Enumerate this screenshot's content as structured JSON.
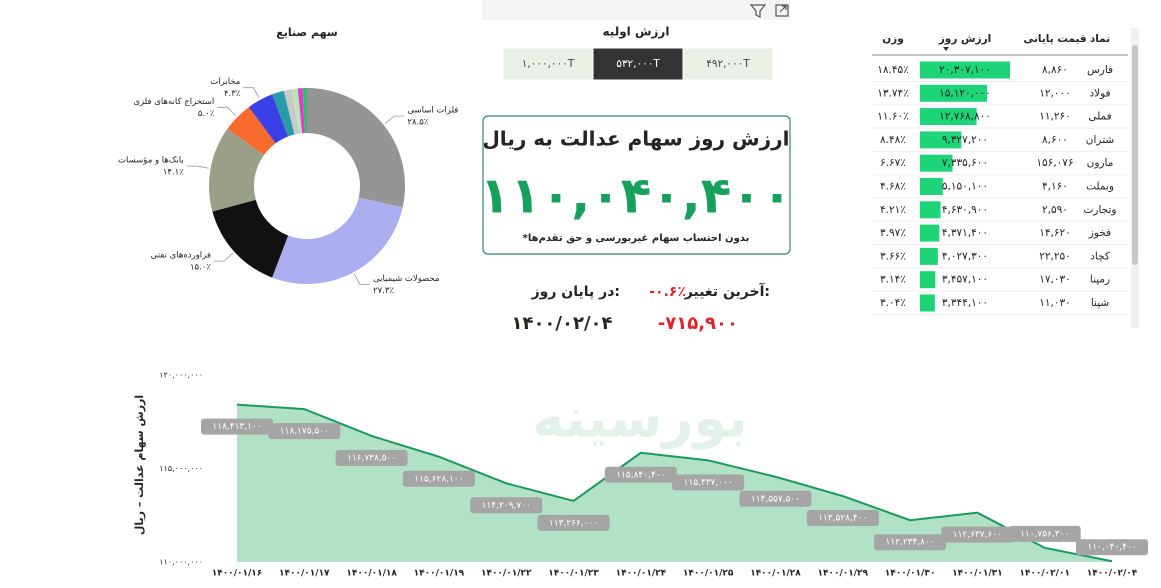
{
  "filter": {
    "title": "ارزش اولیه",
    "options": [
      "۱,۰۰۰,۰۰۰T",
      "۵۳۲,۰۰۰T",
      "۴۹۲,۰۰۰T"
    ],
    "selected_option": 1
  },
  "kpi": {
    "title": "ارزش روز سهام عدالت به ریال",
    "value": "۱۱۰,۰۴۰,۴۰۰",
    "note": "*بدون احتساب سهام غیربورسی و حق تقدم‌ها"
  },
  "change": {
    "label": "آخرین تغییر:",
    "percent": "-۰.۶٪",
    "end_label": "در پایان روز:",
    "amount": "-۷۱۵,۹۰۰",
    "date": "۱۴۰۰/۰۲/۰۴"
  },
  "watermark": "بورسینه",
  "table": {
    "columns": [
      "نماد",
      "قیمت پایانی",
      "ارزش روز",
      "وزن"
    ],
    "rows": [
      [
        "فارس",
        "۸,۸۶۰",
        "۲۰,۳۰۷,۱۰۰",
        "۱۸.۴۵٪"
      ],
      [
        "فولاد",
        "۱۲,۰۰۰",
        "۱۵,۱۲۰,۰۰۰",
        "۱۳.۷۴٪"
      ],
      [
        "فملی",
        "۱۱,۲۶۰",
        "۱۲,۷۶۸,۸۰۰",
        "۱۱.۶۰٪"
      ],
      [
        "شتران",
        "۸,۶۰۰",
        "۹,۳۲۷,۲۰۰",
        "۸.۴۸٪"
      ],
      [
        "مارون",
        "۱۵۶,۰۷۶",
        "۷,۳۳۵,۶۰۰",
        "۶.۶۷٪"
      ],
      [
        "وبملت",
        "۴,۱۶۰",
        "۵,۱۵۰,۱۰۰",
        "۴.۶۸٪"
      ],
      [
        "وتجارت",
        "۲,۵۹۰",
        "۴,۶۳۰,۹۰۰",
        "۴.۲۱٪"
      ],
      [
        "فخوز",
        "۱۴,۶۲۰",
        "۴,۳۷۱,۴۰۰",
        "۳.۹۷٪"
      ],
      [
        "کچاد",
        "۲۲,۲۵۰",
        "۴,۰۲۷,۳۰۰",
        "۳.۶۶٪"
      ],
      [
        "رمپنا",
        "۱۷,۰۳۰",
        "۳,۴۵۷,۱۰۰",
        "۳.۱۴٪"
      ],
      [
        "شپنا",
        "۱۱,۰۳۰",
        "۳,۳۴۴,۱۰۰",
        "۳.۰۴٪"
      ]
    ]
  },
  "chart_data": [
    {
      "type": "pie",
      "title": "سهم صنایع",
      "categories": [
        "فلزات اساسی",
        "محصولات شیمیایی",
        "فراورده‌های نفتی",
        "بانک‌ها و مؤسسات",
        "استخراج کانه‌های فلزی",
        "مخابرات",
        null,
        null,
        null,
        null,
        null
      ],
      "values": [
        28.5,
        27.3,
        15.0,
        14.1,
        5.0,
        4.3,
        2.0,
        1.3,
        1.0,
        0.8,
        0.7
      ],
      "value_labels": [
        "۲۸.۵٪",
        "۲۷.۳٪",
        "۱۵.۰٪",
        "۱۴.۱٪",
        "۵.۰٪",
        "۴.۳٪",
        null,
        null,
        null,
        null,
        null
      ],
      "colors": [
        "#959595",
        "#aaaef0",
        "#111111",
        "#9aa088",
        "#f96a2f",
        "#3840e6",
        "#2a9aa8",
        "#c9c9c9",
        "#b8e6b4",
        "#e23bd2",
        "#2dbf6e"
      ]
    },
    {
      "type": "area",
      "y_label": "ارزش سهام عدالت – ریال",
      "x": [
        "۱۴۰۰/۰۱/۱۶",
        "۱۴۰۰/۰۱/۱۷",
        "۱۴۰۰/۰۱/۱۸",
        "۱۴۰۰/۰۱/۱۹",
        "۱۴۰۰/۰۱/۲۲",
        "۱۴۰۰/۰۱/۲۳",
        "۱۴۰۰/۰۱/۲۴",
        "۱۴۰۰/۰۱/۲۵",
        "۱۴۰۰/۰۱/۲۸",
        "۱۴۰۰/۰۱/۲۹",
        "۱۴۰۰/۰۱/۳۰",
        "۱۴۰۰/۰۱/۳۱",
        "۱۴۰۰/۰۲/۰۱",
        "۱۴۰۰/۰۲/۰۴"
      ],
      "values": [
        118413100,
        118175500,
        116738500,
        115628100,
        114209700,
        113266000,
        115840400,
        115437000,
        114557500,
        113528400,
        112234800,
        112637600,
        110756300,
        110040400
      ],
      "value_labels": [
        "۱۱۸,۴۱۳,۱۰۰",
        "۱۱۸,۱۷۵,۵۰۰",
        "۱۱۶,۷۳۸,۵۰۰",
        "۱۱۵,۶۲۸,۱۰۰",
        "۱۱۴,۲۰۹,۷۰۰",
        "۱۱۳,۲۶۶,۰۰۰",
        "۱۱۵,۸۴۰,۴۰۰",
        "۱۱۵,۴۳۷,۰۰۰",
        "۱۱۴,۵۵۷,۵۰۰",
        "۱۱۳,۵۲۸,۴۰۰",
        "۱۱۲,۲۳۴,۸۰۰",
        "۱۱۲,۶۳۷,۶۰۰",
        "۱۱۰,۷۵۶,۳۰۰",
        "۱۱۰,۰۴۰,۴۰۰"
      ],
      "color": "#1a9a5c",
      "fill_color": "#a3dcbd",
      "ylim": [
        110000000,
        120000000
      ],
      "yticks": [
        {
          "value": 110000000,
          "label": "۱۱۰,۰۰۰,۰۰۰"
        },
        {
          "value": 115000000,
          "label": "۱۱۵,۰۰۰,۰۰۰"
        },
        {
          "value": 120000000,
          "label": "۱۲۰,۰۰۰,۰۰۰"
        }
      ]
    }
  ]
}
